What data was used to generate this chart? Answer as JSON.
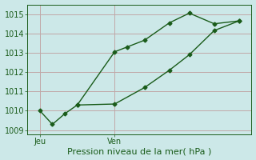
{
  "xlabel": "Pression niveau de la mer( hPa )",
  "ylim": [
    1008.8,
    1015.5
  ],
  "yticks": [
    1009,
    1010,
    1011,
    1012,
    1013,
    1014,
    1015
  ],
  "xtick_labels": [
    "Jeu",
    "Ven"
  ],
  "xtick_positions": [
    0,
    3
  ],
  "bg_color": "#cce8e8",
  "grid_color": "#c0a8a8",
  "line_color": "#1a5c1a",
  "line1_x": [
    0,
    0.5,
    1.0,
    1.5,
    3.0,
    3.5,
    4.2,
    5.2,
    6.0,
    7.0,
    8.0
  ],
  "line1_y": [
    1010.0,
    1009.3,
    1009.85,
    1010.3,
    1013.05,
    1013.3,
    1013.65,
    1014.55,
    1015.05,
    1014.5,
    1014.65
  ],
  "line2_x": [
    1.5,
    3.0,
    4.2,
    5.2,
    6.0,
    7.0,
    8.0
  ],
  "line2_y": [
    1010.3,
    1010.35,
    1011.2,
    1012.1,
    1012.9,
    1014.15,
    1014.65
  ],
  "vline_x": [
    0,
    3.0
  ],
  "marker": "D",
  "markersize": 2.5,
  "linewidth": 1.0,
  "xlabel_fontsize": 8,
  "ytick_fontsize": 7,
  "xtick_fontsize": 7,
  "xlim": [
    -0.5,
    8.5
  ]
}
